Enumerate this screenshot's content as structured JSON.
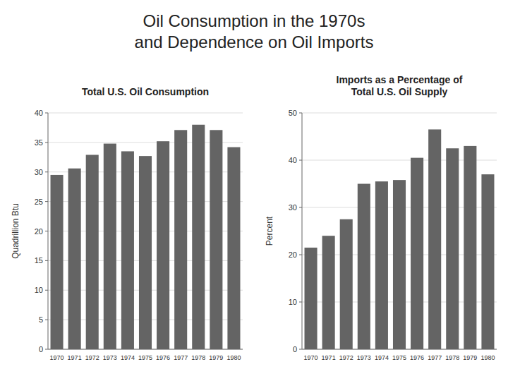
{
  "title": "Oil Consumption in the 1970s\nand Dependence on Oil Imports",
  "chart_data": [
    {
      "type": "bar",
      "title": "Total U.S. Oil Consumption",
      "y_label": "Quadrillion Btu",
      "categories": [
        "1970",
        "1971",
        "1972",
        "1973",
        "1974",
        "1975",
        "1976",
        "1977",
        "1978",
        "1979",
        "1980"
      ],
      "values": [
        29.5,
        30.6,
        32.9,
        34.8,
        33.5,
        32.7,
        35.2,
        37.1,
        38.0,
        37.1,
        34.2
      ],
      "color": "#646464",
      "ylim": [
        0,
        40
      ],
      "yticks": [
        0,
        5,
        10,
        15,
        20,
        25,
        30,
        35,
        40
      ],
      "grid": true
    },
    {
      "type": "bar",
      "title": "Imports as a Percentage of\nTotal U.S. Oil Supply",
      "y_label": "Percent",
      "categories": [
        "1970",
        "1971",
        "1972",
        "1973",
        "1974",
        "1975",
        "1976",
        "1977",
        "1978",
        "1979",
        "1980"
      ],
      "values": [
        21.5,
        24.0,
        27.5,
        35.0,
        35.5,
        35.8,
        40.5,
        46.5,
        42.5,
        43.0,
        37.0
      ],
      "color": "#646464",
      "ylim": [
        0,
        50
      ],
      "yticks": [
        0,
        10,
        20,
        30,
        40,
        50
      ],
      "grid": true
    }
  ]
}
